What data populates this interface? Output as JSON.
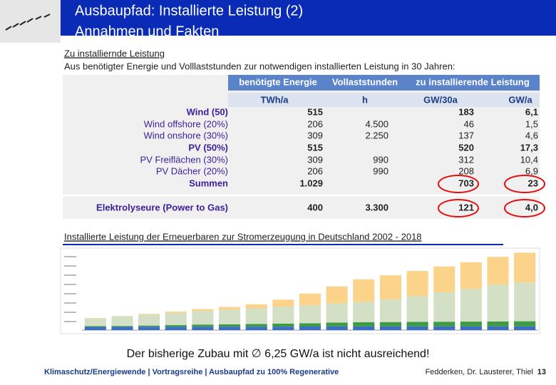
{
  "header": {
    "title": "Ausbaupfad: Installierte Leistung (2)",
    "subtitle": "Annahmen und Fakten"
  },
  "intro": {
    "heading": "Zu installiernde Leistung",
    "text": "Aus benötigter Energie und Volllaststunden zur notwendigen installierten Leistung in 30 Jahren:"
  },
  "table": {
    "groups": [
      "benötigte Energie",
      "Vollaststunden",
      "zu installierende Leistung"
    ],
    "units": [
      "TWh/a",
      "h",
      "GW/30a",
      "GW/a"
    ],
    "rows": [
      {
        "cells": [
          "Wind (50)",
          "515",
          null,
          "183",
          "6,1"
        ],
        "bold": true
      },
      {
        "cells": [
          "Wind offshore (20%)",
          "206",
          "4.500",
          "46",
          "1,5"
        ],
        "bold": false
      },
      {
        "cells": [
          "Wind onshore (30%)",
          "309",
          "2.250",
          "137",
          "4,6"
        ],
        "bold": false
      },
      {
        "cells": [
          "PV (50%)",
          "515",
          null,
          "520",
          "17,3"
        ],
        "bold": true
      },
      {
        "cells": [
          "PV Freiflächen (30%)",
          "309",
          "990",
          "312",
          "10,4"
        ],
        "bold": false
      },
      {
        "cells": [
          "PV Dächer (20%)",
          "206",
          "990",
          "208",
          "6,9"
        ],
        "bold": false
      },
      {
        "cells": [
          "Summen",
          "1.029",
          null,
          "703",
          "23"
        ],
        "bold": true
      },
      {
        "cells": [
          "Elektrolyseure (Power to Gas)",
          "400",
          "3.300",
          "121",
          "4,0"
        ],
        "bold": true
      }
    ]
  },
  "chart_caption": "Installierte Leistung der Erneuerbaren zur Stromerzeugung in Deutschland 2002 - 2018",
  "chart_data": {
    "type": "stacked-bar",
    "ylim": [
      0,
      120
    ],
    "series": [
      {
        "color": "#3b6fc6",
        "values": [
          4.9,
          4.9,
          5.2,
          5.2,
          5.2,
          5.2,
          5.2,
          5.3,
          5.4,
          5.6,
          5.6,
          5.6,
          5.6,
          5.6,
          5.6,
          5.6,
          5.6
        ]
      },
      {
        "color": "#3f9a45",
        "values": [
          1.2,
          1.4,
          1.7,
          2.4,
          3.2,
          3.5,
          4.0,
          4.6,
          5.0,
          5.8,
          6.3,
          6.6,
          6.9,
          7.1,
          7.3,
          7.5,
          7.8
        ]
      },
      {
        "color": "#d3e0c6",
        "values": [
          12.0,
          14.6,
          16.6,
          18.4,
          20.6,
          22.2,
          23.8,
          25.7,
          27.0,
          29.0,
          31.0,
          34.2,
          39.2,
          44.6,
          49.4,
          55.7,
          58.8
        ]
      },
      {
        "color": "#fcd38b",
        "values": [
          0.3,
          0.4,
          1.1,
          2.1,
          2.9,
          4.2,
          6.1,
          10.6,
          18.0,
          25.9,
          34.1,
          36.7,
          37.9,
          39.2,
          40.7,
          42.3,
          45.2
        ]
      }
    ]
  },
  "conclusion": "Der bisherige Zubau mit ∅ 6,25 GW/a ist nicht ausreichend!",
  "footer": {
    "left": "Klimaschutz/Energiewende | Vortragsreihe | Ausbaupfad zu 100% Regenerative",
    "authors": "Fedderken, Dr. Lausterer, Thiel",
    "page": "13"
  }
}
